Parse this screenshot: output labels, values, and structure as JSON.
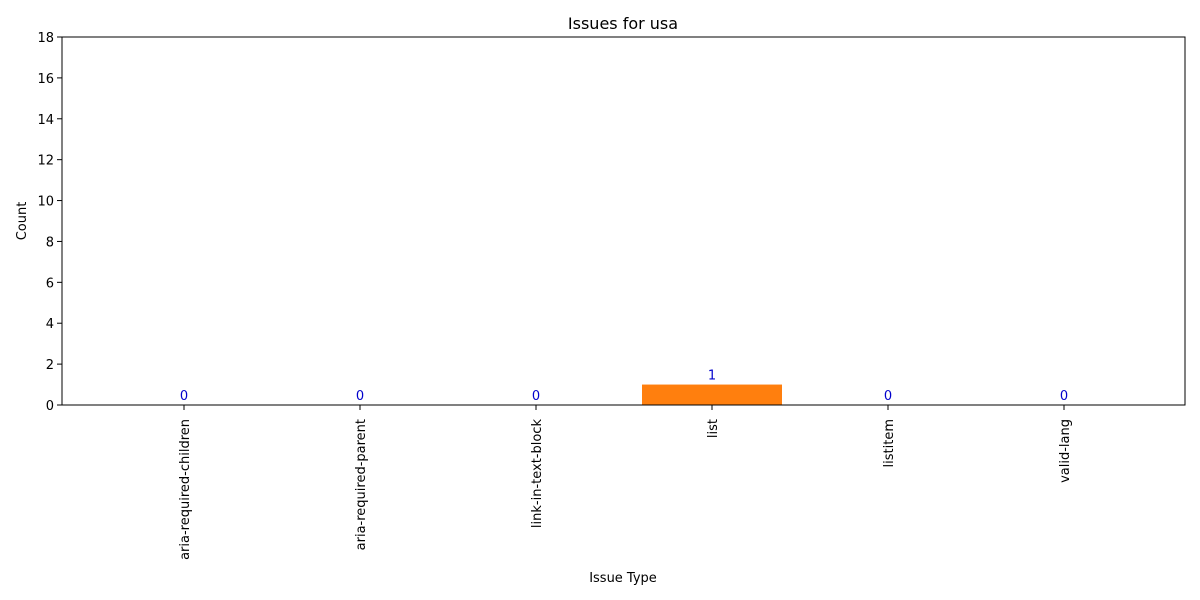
{
  "chart_data": {
    "type": "bar",
    "title": "Issues for usa",
    "xlabel": "Issue Type",
    "ylabel": "Count",
    "categories": [
      "aria-required-children",
      "aria-required-parent",
      "link-in-text-block",
      "list",
      "listitem",
      "valid-lang"
    ],
    "values": [
      0,
      0,
      0,
      1,
      0,
      0
    ],
    "ylim": [
      0,
      18
    ],
    "yticks": [
      0,
      2,
      4,
      6,
      8,
      10,
      12,
      14,
      16,
      18
    ],
    "grid": false,
    "legend": "none",
    "bar_color": "#ff7f0e",
    "value_label_color": "#0000cc"
  }
}
